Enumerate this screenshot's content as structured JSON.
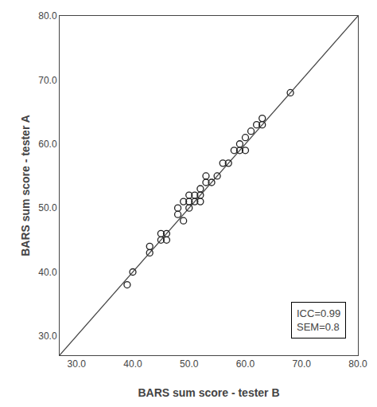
{
  "chart_data": {
    "type": "scatter",
    "xlabel": "BARS sum score - tester B",
    "ylabel": "BARS sum score - tester A",
    "annotation": "ICC=0.99\nSEM=0.8",
    "series": [
      {
        "type": "line",
        "color": "#444444",
        "x": [
          27,
          80
        ],
        "values": [
          27,
          80
        ]
      },
      {
        "type": "scatter",
        "color": "#222222",
        "marker": "circle-open",
        "x": [
          39,
          40,
          43,
          43,
          45,
          45,
          46,
          46,
          48,
          48,
          49,
          49,
          50,
          50,
          50,
          51,
          51,
          52,
          52,
          52,
          53,
          53,
          54,
          55,
          56,
          57,
          58,
          59,
          59,
          60,
          60,
          61,
          62,
          63,
          63,
          68
        ],
        "values": [
          38,
          40,
          43,
          44,
          45,
          46,
          45,
          46,
          49,
          50,
          48,
          51,
          50,
          51,
          52,
          51,
          52,
          51,
          52,
          53,
          54,
          55,
          54,
          55,
          57,
          57,
          59,
          59,
          60,
          59,
          61,
          62,
          63,
          63,
          64,
          68
        ]
      }
    ],
    "xlim": [
      27,
      80
    ],
    "ylim": [
      27,
      80
    ],
    "xticks": [
      {
        "value": 30,
        "label": "30.0"
      },
      {
        "value": 40,
        "label": "40.0"
      },
      {
        "value": 50,
        "label": "50.0"
      },
      {
        "value": 60,
        "label": "60.0"
      },
      {
        "value": 70,
        "label": "70.0"
      },
      {
        "value": 80,
        "label": "80.0"
      }
    ],
    "yticks": [
      {
        "value": 30,
        "label": "30.0"
      },
      {
        "value": 40,
        "label": "40.0"
      },
      {
        "value": 50,
        "label": "50.0"
      },
      {
        "value": 60,
        "label": "60.0"
      },
      {
        "value": 70,
        "label": "70.0"
      },
      {
        "value": 80,
        "label": "80.0"
      }
    ],
    "grid": false
  }
}
